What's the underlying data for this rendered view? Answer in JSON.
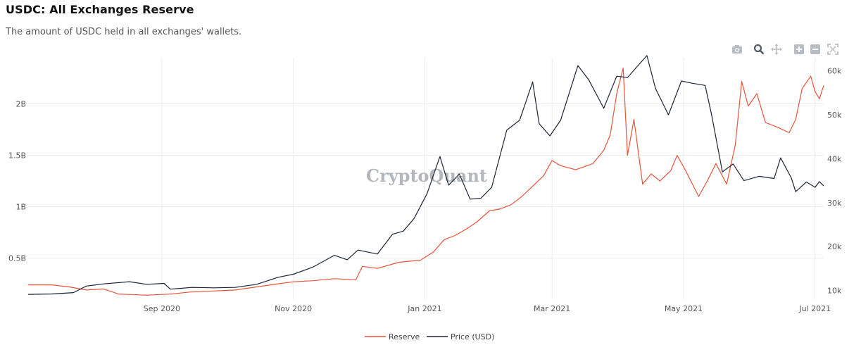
{
  "header": {
    "title": "USDC: All Exchanges Reserve",
    "subtitle": "The amount of USDC held in all exchanges' wallets."
  },
  "toolbar": {
    "icons": [
      "camera-icon",
      "zoom-icon",
      "pan-icon",
      "zoom-in-icon",
      "zoom-out-icon",
      "autoscale-icon"
    ]
  },
  "watermark": "CryptoQuant",
  "colors": {
    "reserve": "#e8533a",
    "price": "#1c2333",
    "grid": "#ececec",
    "icon": "#b8bcc4",
    "icon_active": "#555a63"
  },
  "chart_data": {
    "type": "line",
    "x_range": [
      "2020-07-01",
      "2021-07-05"
    ],
    "x_ticks": [
      {
        "date": "2020-09-01",
        "label": "Sep 2020"
      },
      {
        "date": "2020-11-01",
        "label": "Nov 2020"
      },
      {
        "date": "2021-01-01",
        "label": "Jan 2021"
      },
      {
        "date": "2021-03-01",
        "label": "Mar 2021"
      },
      {
        "date": "2021-05-01",
        "label": "May 2021"
      },
      {
        "date": "2021-07-01",
        "label": "Jul 2021"
      }
    ],
    "y_left": {
      "range": [
        0.1,
        2.45
      ],
      "ticks": [
        {
          "v": 0.5,
          "label": "0.5B"
        },
        {
          "v": 1.0,
          "label": "1B"
        },
        {
          "v": 1.5,
          "label": "1.5B"
        },
        {
          "v": 2.0,
          "label": "2B"
        }
      ]
    },
    "y_right": {
      "range": [
        8000,
        63000
      ],
      "ticks": [
        {
          "v": 10000,
          "label": "10k"
        },
        {
          "v": 20000,
          "label": "20k"
        },
        {
          "v": 30000,
          "label": "30k"
        },
        {
          "v": 40000,
          "label": "40k"
        },
        {
          "v": 50000,
          "label": "50k"
        },
        {
          "v": 60000,
          "label": "60k"
        }
      ]
    },
    "grid": true,
    "legend_position": "bottom-center",
    "series": [
      {
        "name": "Reserve",
        "axis": "left",
        "points": [
          [
            "2020-07-01",
            0.24
          ],
          [
            "2020-07-12",
            0.24
          ],
          [
            "2020-07-20",
            0.22
          ],
          [
            "2020-07-28",
            0.19
          ],
          [
            "2020-08-05",
            0.2
          ],
          [
            "2020-08-12",
            0.15
          ],
          [
            "2020-08-25",
            0.14
          ],
          [
            "2020-09-05",
            0.15
          ],
          [
            "2020-09-14",
            0.17
          ],
          [
            "2020-09-25",
            0.18
          ],
          [
            "2020-10-05",
            0.19
          ],
          [
            "2020-10-15",
            0.22
          ],
          [
            "2020-10-25",
            0.25
          ],
          [
            "2020-11-01",
            0.27
          ],
          [
            "2020-11-10",
            0.28
          ],
          [
            "2020-11-20",
            0.3
          ],
          [
            "2020-11-30",
            0.29
          ],
          [
            "2020-12-03",
            0.42
          ],
          [
            "2020-12-10",
            0.4
          ],
          [
            "2020-12-20",
            0.46
          ],
          [
            "2020-12-30",
            0.48
          ],
          [
            "2021-01-05",
            0.56
          ],
          [
            "2021-01-10",
            0.68
          ],
          [
            "2021-01-15",
            0.72
          ],
          [
            "2021-01-20",
            0.78
          ],
          [
            "2021-01-25",
            0.85
          ],
          [
            "2021-01-31",
            0.96
          ],
          [
            "2021-02-05",
            0.98
          ],
          [
            "2021-02-10",
            1.02
          ],
          [
            "2021-02-15",
            1.1
          ],
          [
            "2021-02-20",
            1.2
          ],
          [
            "2021-02-25",
            1.3
          ],
          [
            "2021-03-01",
            1.45
          ],
          [
            "2021-03-05",
            1.4
          ],
          [
            "2021-03-12",
            1.36
          ],
          [
            "2021-03-20",
            1.42
          ],
          [
            "2021-03-25",
            1.55
          ],
          [
            "2021-03-28",
            1.7
          ],
          [
            "2021-03-31",
            2.1
          ],
          [
            "2021-04-03",
            2.35
          ],
          [
            "2021-04-05",
            1.5
          ],
          [
            "2021-04-08",
            1.85
          ],
          [
            "2021-04-12",
            1.22
          ],
          [
            "2021-04-16",
            1.32
          ],
          [
            "2021-04-20",
            1.25
          ],
          [
            "2021-04-25",
            1.35
          ],
          [
            "2021-04-28",
            1.5
          ],
          [
            "2021-05-02",
            1.35
          ],
          [
            "2021-05-08",
            1.1
          ],
          [
            "2021-05-12",
            1.25
          ],
          [
            "2021-05-16",
            1.42
          ],
          [
            "2021-05-21",
            1.22
          ],
          [
            "2021-05-25",
            1.6
          ],
          [
            "2021-05-28",
            2.22
          ],
          [
            "2021-05-31",
            1.98
          ],
          [
            "2021-06-04",
            2.1
          ],
          [
            "2021-06-08",
            1.82
          ],
          [
            "2021-06-14",
            1.77
          ],
          [
            "2021-06-19",
            1.72
          ],
          [
            "2021-06-22",
            1.85
          ],
          [
            "2021-06-25",
            2.15
          ],
          [
            "2021-06-29",
            2.27
          ],
          [
            "2021-07-01",
            2.12
          ],
          [
            "2021-07-03",
            2.05
          ],
          [
            "2021-07-05",
            2.18
          ]
        ]
      },
      {
        "name": "Price (USD)",
        "axis": "right",
        "points": [
          [
            "2020-07-01",
            9100
          ],
          [
            "2020-07-12",
            9200
          ],
          [
            "2020-07-22",
            9500
          ],
          [
            "2020-07-28",
            11000
          ],
          [
            "2020-08-05",
            11500
          ],
          [
            "2020-08-17",
            12000
          ],
          [
            "2020-08-25",
            11400
          ],
          [
            "2020-09-02",
            11600
          ],
          [
            "2020-09-05",
            10300
          ],
          [
            "2020-09-15",
            10700
          ],
          [
            "2020-09-25",
            10600
          ],
          [
            "2020-10-05",
            10700
          ],
          [
            "2020-10-15",
            11400
          ],
          [
            "2020-10-25",
            13000
          ],
          [
            "2020-11-01",
            13700
          ],
          [
            "2020-11-10",
            15300
          ],
          [
            "2020-11-20",
            18000
          ],
          [
            "2020-11-26",
            17000
          ],
          [
            "2020-12-01",
            19200
          ],
          [
            "2020-12-10",
            18300
          ],
          [
            "2020-12-17",
            22800
          ],
          [
            "2020-12-22",
            23500
          ],
          [
            "2020-12-27",
            26400
          ],
          [
            "2021-01-02",
            32000
          ],
          [
            "2021-01-08",
            40500
          ],
          [
            "2021-01-12",
            34000
          ],
          [
            "2021-01-17",
            36500
          ],
          [
            "2021-01-22",
            30800
          ],
          [
            "2021-01-27",
            31000
          ],
          [
            "2021-02-01",
            33500
          ],
          [
            "2021-02-08",
            46500
          ],
          [
            "2021-02-14",
            48800
          ],
          [
            "2021-02-20",
            57500
          ],
          [
            "2021-02-23",
            48000
          ],
          [
            "2021-02-28",
            45200
          ],
          [
            "2021-03-05",
            48800
          ],
          [
            "2021-03-13",
            61200
          ],
          [
            "2021-03-18",
            58000
          ],
          [
            "2021-03-25",
            51500
          ],
          [
            "2021-03-31",
            58800
          ],
          [
            "2021-04-05",
            58500
          ],
          [
            "2021-04-14",
            63500
          ],
          [
            "2021-04-18",
            56000
          ],
          [
            "2021-04-24",
            50000
          ],
          [
            "2021-04-30",
            57700
          ],
          [
            "2021-05-05",
            57200
          ],
          [
            "2021-05-11",
            56700
          ],
          [
            "2021-05-14",
            50000
          ],
          [
            "2021-05-19",
            37000
          ],
          [
            "2021-05-24",
            38800
          ],
          [
            "2021-05-29",
            35000
          ],
          [
            "2021-06-05",
            36000
          ],
          [
            "2021-06-12",
            35500
          ],
          [
            "2021-06-15",
            40200
          ],
          [
            "2021-06-20",
            35600
          ],
          [
            "2021-06-22",
            32500
          ],
          [
            "2021-06-27",
            34700
          ],
          [
            "2021-07-01",
            33500
          ],
          [
            "2021-07-03",
            34800
          ],
          [
            "2021-07-05",
            33800
          ]
        ]
      }
    ]
  }
}
